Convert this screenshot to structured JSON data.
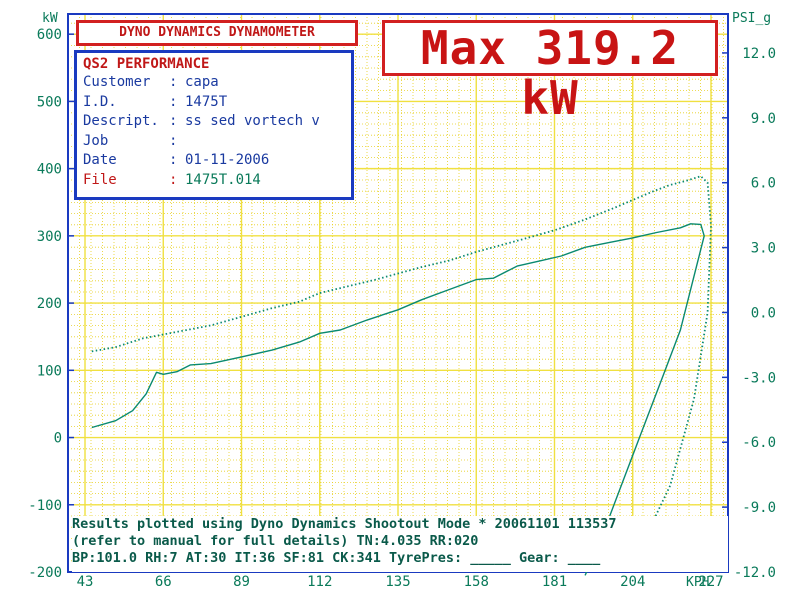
{
  "header": {
    "title": "DYNO DYNAMICS DYNAMOMETER",
    "max_readout": "Max 319.2 kW"
  },
  "info_panel": {
    "heading": "QS2 PERFORMANCE",
    "rows": [
      {
        "key": "Customer",
        "sep": ":",
        "value": "capa"
      },
      {
        "key": "I.D.",
        "sep": ":",
        "value": "1475T"
      },
      {
        "key": "Descript.",
        "sep": ":",
        "value": "ss sed vortech v"
      },
      {
        "key": "Job",
        "sep": ":",
        "value": ""
      },
      {
        "key": "Date",
        "sep": ":",
        "value": "01-11-2006"
      },
      {
        "key": "File",
        "sep": ":",
        "value": "1475T.014"
      }
    ]
  },
  "footer": {
    "line1": "Results plotted using Dyno Dynamics Shootout Mode * 20061101 113537",
    "line2": "(refer to manual for full details) TN:4.035 RR:020",
    "line3": "BP:101.0 RH:7  AT:30 IT:36  SF:81 CK:341 TyrePres: _____ Gear: ____"
  },
  "colors": {
    "grid": "#f0e040",
    "grid_dot": "#e8d020",
    "plot_border": "#1a3ac0",
    "trace": "#0a8a70",
    "text": "#0a7a5a",
    "accent_red": "#c81414"
  },
  "chart_data": {
    "type": "line",
    "left_axis": {
      "unit": "kW",
      "ticks": [
        600,
        500,
        400,
        300,
        200,
        100,
        0,
        -100,
        -200
      ],
      "range": [
        -200,
        630
      ]
    },
    "right_axis": {
      "unit": "PSI_g",
      "ticks": [
        "12.0",
        "9.0",
        "6.0",
        "3.0",
        "0.0",
        "-3.0",
        "-6.0",
        "-9.0",
        "-12.0"
      ],
      "range": [
        -12.0,
        13.8
      ]
    },
    "x_axis": {
      "unit": "KPH",
      "ticks": [
        43,
        66,
        89,
        112,
        135,
        158,
        181,
        204,
        227
      ],
      "range": [
        38,
        232
      ]
    },
    "grid": true,
    "series": [
      {
        "axis": "left",
        "style": "solid",
        "points": [
          [
            45,
            15
          ],
          [
            52,
            25
          ],
          [
            57,
            40
          ],
          [
            61,
            65
          ],
          [
            64,
            97
          ],
          [
            66,
            94
          ],
          [
            70,
            98
          ],
          [
            74,
            108
          ],
          [
            80,
            110
          ],
          [
            89,
            120
          ],
          [
            98,
            130
          ],
          [
            106,
            142
          ],
          [
            112,
            155
          ],
          [
            118,
            160
          ],
          [
            126,
            175
          ],
          [
            135,
            190
          ],
          [
            142,
            205
          ],
          [
            150,
            220
          ],
          [
            158,
            235
          ],
          [
            163,
            237
          ],
          [
            170,
            255
          ],
          [
            177,
            263
          ],
          [
            183,
            270
          ],
          [
            190,
            283
          ],
          [
            197,
            290
          ],
          [
            204,
            297
          ],
          [
            211,
            305
          ],
          [
            218,
            312
          ],
          [
            221,
            318
          ],
          [
            224,
            317
          ],
          [
            225,
            300
          ],
          [
            222,
            240
          ],
          [
            218,
            160
          ],
          [
            212,
            80
          ],
          [
            206,
            0
          ],
          [
            200,
            -80
          ],
          [
            194,
            -160
          ],
          [
            190,
            -205
          ]
        ]
      },
      {
        "axis": "right",
        "style": "dotted",
        "points": [
          [
            45,
            -1.8
          ],
          [
            52,
            -1.6
          ],
          [
            60,
            -1.2
          ],
          [
            70,
            -0.9
          ],
          [
            80,
            -0.6
          ],
          [
            89,
            -0.2
          ],
          [
            98,
            0.2
          ],
          [
            106,
            0.5
          ],
          [
            112,
            0.9
          ],
          [
            120,
            1.2
          ],
          [
            128,
            1.5
          ],
          [
            135,
            1.8
          ],
          [
            142,
            2.1
          ],
          [
            150,
            2.4
          ],
          [
            158,
            2.8
          ],
          [
            165,
            3.1
          ],
          [
            172,
            3.4
          ],
          [
            181,
            3.8
          ],
          [
            190,
            4.3
          ],
          [
            198,
            4.8
          ],
          [
            204,
            5.2
          ],
          [
            210,
            5.6
          ],
          [
            215,
            5.9
          ],
          [
            220,
            6.1
          ],
          [
            224,
            6.3
          ],
          [
            226,
            6.0
          ],
          [
            227,
            4.0
          ],
          [
            226,
            0.0
          ],
          [
            222,
            -4.0
          ],
          [
            215,
            -8.0
          ],
          [
            208,
            -10.3
          ],
          [
            200,
            -11.2
          ],
          [
            190,
            -11.7
          ],
          [
            181,
            -11.9
          ]
        ]
      }
    ]
  }
}
